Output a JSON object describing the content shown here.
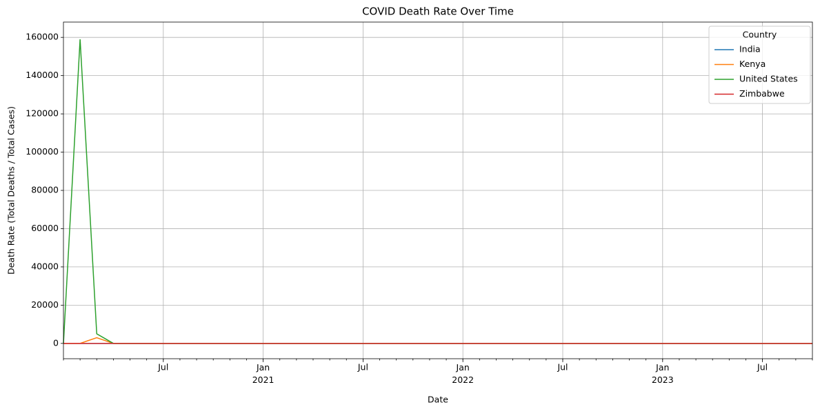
{
  "chart_data": {
    "type": "line",
    "title": "COVID Death Rate Over Time",
    "x_label": "Date",
    "y_label": "Death Rate (Total Deaths / Total Cases)",
    "x": [
      "2020-01",
      "2020-02",
      "2020-03",
      "2020-04",
      "2020-05",
      "2020-06",
      "2020-07",
      "2020-08",
      "2020-09",
      "2020-10",
      "2020-11",
      "2020-12",
      "2021-01",
      "2021-02",
      "2021-03",
      "2021-04",
      "2021-05",
      "2021-06",
      "2021-07",
      "2021-08",
      "2021-09",
      "2021-10",
      "2021-11",
      "2021-12",
      "2022-01",
      "2022-02",
      "2022-03",
      "2022-04",
      "2022-05",
      "2022-06",
      "2022-07",
      "2022-08",
      "2022-09",
      "2022-10",
      "2022-11",
      "2022-12",
      "2023-01",
      "2023-02",
      "2023-03",
      "2023-04",
      "2023-05",
      "2023-06",
      "2023-07",
      "2023-08",
      "2023-09",
      "2023-10"
    ],
    "series": [
      {
        "name": "India",
        "color": "#1f77b4",
        "values": [
          0,
          0,
          0,
          0,
          0,
          0,
          0,
          0,
          0,
          0,
          0,
          0,
          0,
          0,
          0,
          0,
          0,
          0,
          0,
          0,
          0,
          0,
          0,
          0,
          0,
          0,
          0,
          0,
          0,
          0,
          0,
          0,
          0,
          0,
          0,
          0,
          0,
          0,
          0,
          0,
          0,
          0,
          0,
          0,
          0,
          0
        ]
      },
      {
        "name": "Kenya",
        "color": "#ff7f0e",
        "values": [
          0,
          0,
          3000,
          0,
          0,
          0,
          0,
          0,
          0,
          0,
          0,
          0,
          0,
          0,
          0,
          0,
          0,
          0,
          0,
          0,
          0,
          0,
          0,
          0,
          0,
          0,
          0,
          0,
          0,
          0,
          0,
          0,
          0,
          0,
          0,
          0,
          0,
          0,
          0,
          0,
          0,
          0,
          0,
          0,
          0,
          0
        ]
      },
      {
        "name": "United States",
        "color": "#2ca02c",
        "values": [
          0,
          159000,
          5000,
          0,
          0,
          0,
          0,
          0,
          0,
          0,
          0,
          0,
          0,
          0,
          0,
          0,
          0,
          0,
          0,
          0,
          0,
          0,
          0,
          0,
          0,
          0,
          0,
          0,
          0,
          0,
          0,
          0,
          0,
          0,
          0,
          0,
          0,
          0,
          0,
          0,
          0,
          0,
          0,
          0,
          0,
          0
        ]
      },
      {
        "name": "Zimbabwe",
        "color": "#d62728",
        "values": [
          0,
          0,
          0,
          0,
          0,
          0,
          0,
          0,
          0,
          0,
          0,
          0,
          0,
          0,
          0,
          0,
          0,
          0,
          0,
          0,
          0,
          0,
          0,
          0,
          0,
          0,
          0,
          0,
          0,
          0,
          0,
          0,
          0,
          0,
          0,
          0,
          0,
          0,
          0,
          0,
          0,
          0,
          0,
          0,
          0,
          0
        ]
      }
    ],
    "xlim": [
      "2020-01",
      "2023-10"
    ],
    "xticks": [
      {
        "value": "2020-07",
        "label": "Jul"
      },
      {
        "value": "2021-01",
        "label": "Jan\n2021"
      },
      {
        "value": "2021-07",
        "label": "Jul"
      },
      {
        "value": "2022-01",
        "label": "Jan\n2022"
      },
      {
        "value": "2022-07",
        "label": "Jul"
      },
      {
        "value": "2023-01",
        "label": "Jan\n2023"
      },
      {
        "value": "2023-07",
        "label": "Jul"
      }
    ],
    "ylim": [
      -8000,
      168000
    ],
    "yticks": [
      0,
      20000,
      40000,
      60000,
      80000,
      100000,
      120000,
      140000,
      160000
    ],
    "grid": true,
    "legend": {
      "title": "Country",
      "position": "upper right"
    }
  }
}
